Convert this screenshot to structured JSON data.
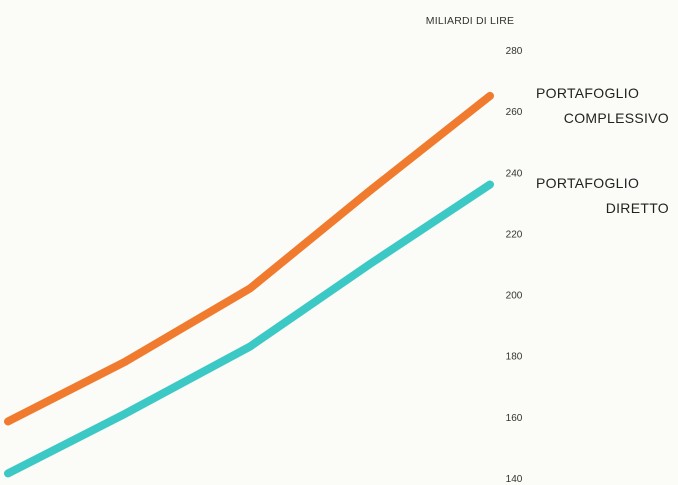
{
  "chart_data": {
    "type": "line",
    "title": "",
    "xlabel": "",
    "ylabel": "MILIARDI DI LIRE",
    "ylim": [
      140,
      280
    ],
    "yticks": [
      140,
      160,
      180,
      200,
      220,
      240,
      260,
      280
    ],
    "x": [
      1,
      2,
      3,
      4,
      5
    ],
    "grid": false,
    "legend": "right",
    "series": [
      {
        "name": "PORTAFOGLIO COMPLESSIVO",
        "label_lines": [
          "PORTAFOGLIO",
          "COMPLESSIVO"
        ],
        "color": "#f07b2e",
        "values": [
          158.5,
          178,
          202,
          234,
          265
        ]
      },
      {
        "name": "PORTAFOGLIO DIRETTO",
        "label_lines": [
          "PORTAFOGLIO",
          "DIRETTO"
        ],
        "color": "#3cc8c4",
        "values": [
          141.5,
          161,
          183,
          210,
          236
        ]
      }
    ]
  }
}
